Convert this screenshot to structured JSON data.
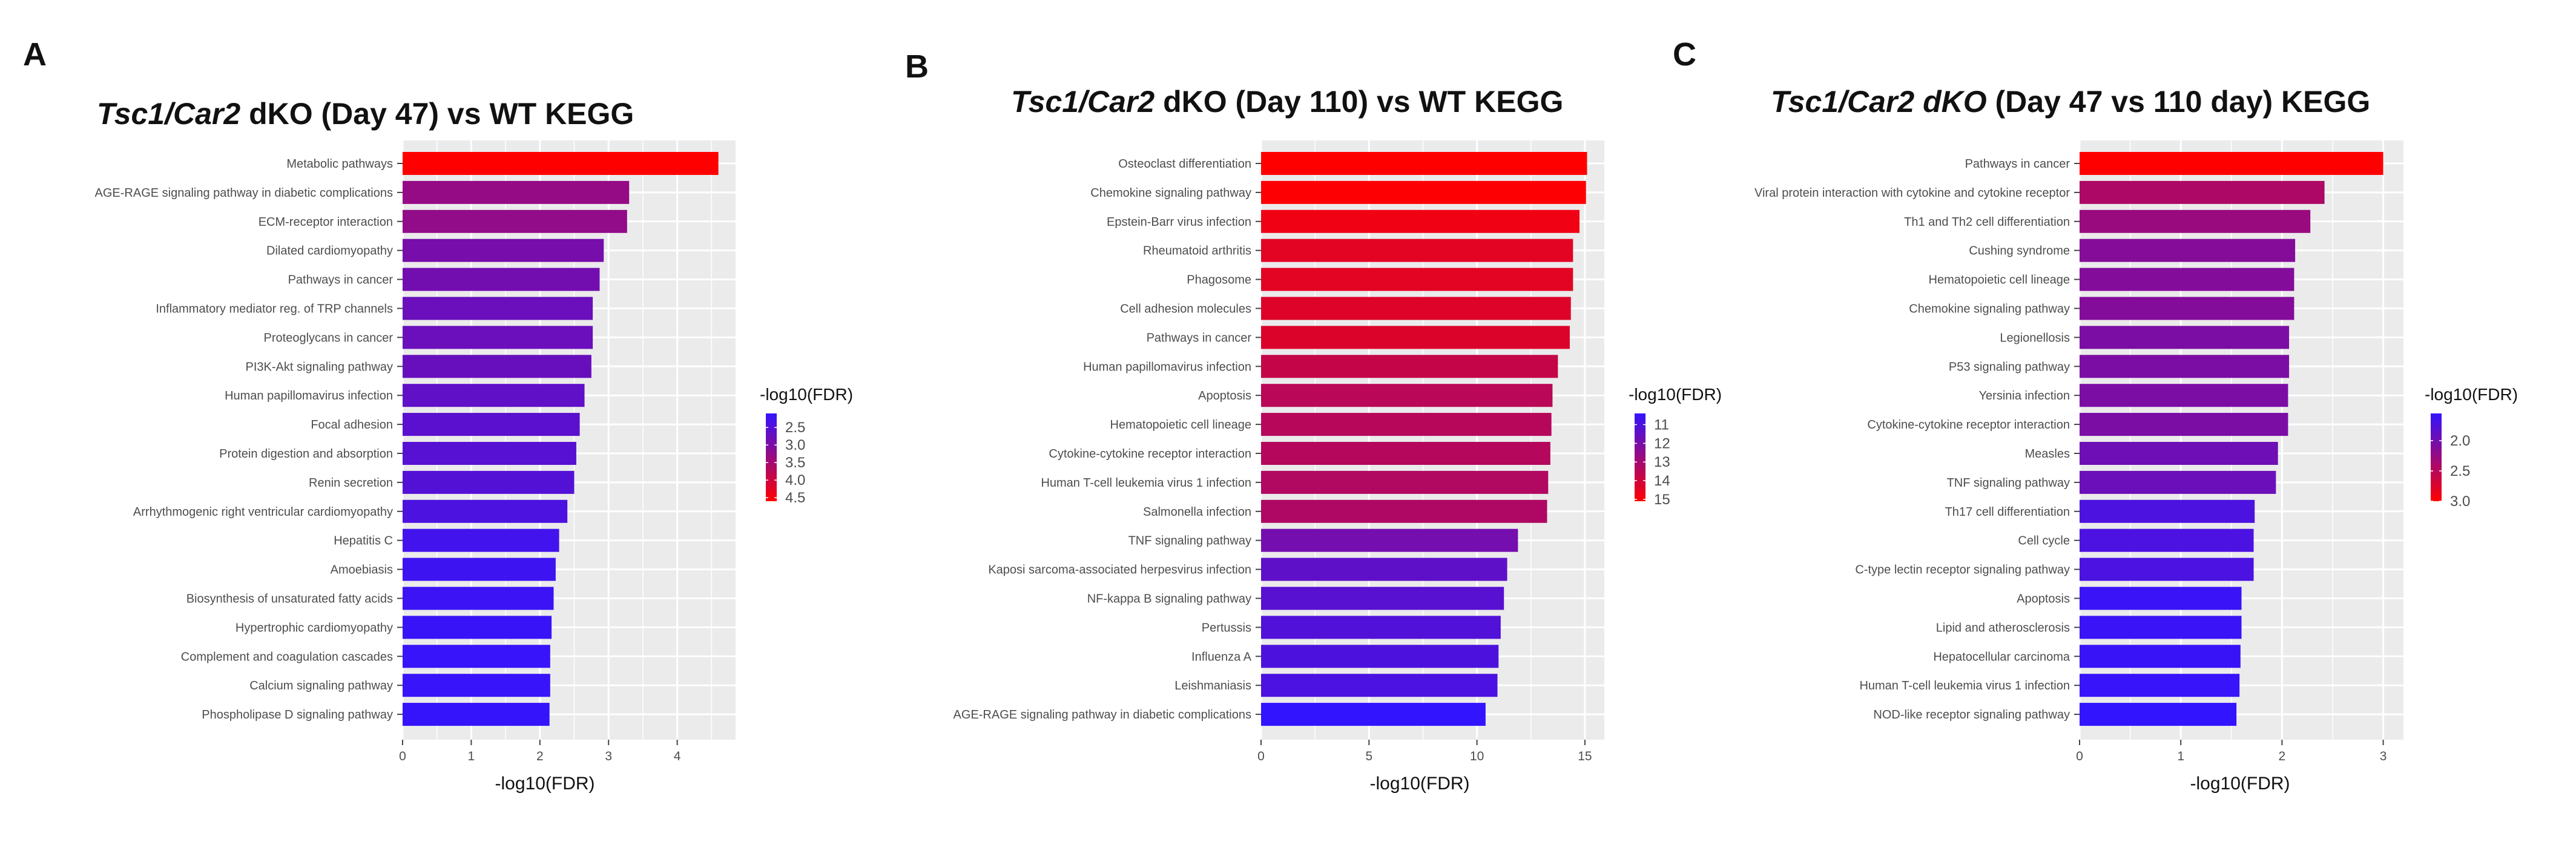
{
  "axis_title": "-log10(FDR)",
  "legend_title": "-log10(FDR)",
  "chart_data": [
    {
      "type": "bar",
      "panel_label": "A",
      "title_italic": "Tsc1/Car2",
      "title_rest": " dKO (Day 47) vs WT KEGG",
      "xlabel": "-log10(FDR)",
      "xlim": [
        0,
        4.85
      ],
      "xticks": [
        0,
        1,
        2,
        3,
        4
      ],
      "color_range": [
        2.1,
        4.6
      ],
      "legend_ticks": [
        2.5,
        3.0,
        3.5,
        4.0,
        4.5
      ],
      "legend_tick_labels": [
        "2.5",
        "3.0",
        "3.5",
        "4.0",
        "4.5"
      ],
      "categories": [
        "Metabolic pathways",
        "AGE-RAGE signaling pathway in diabetic complications",
        "ECM-receptor interaction",
        "Dilated cardiomyopathy",
        "Pathways in cancer",
        "Inflammatory mediator reg. of TRP channels",
        "Proteoglycans in cancer",
        "PI3K-Akt signaling pathway",
        "Human papillomavirus infection",
        "Focal adhesion",
        "Protein digestion and absorption",
        "Renin secretion",
        "Arrhythmogenic right ventricular cardiomyopathy",
        "Hepatitis C",
        "Amoebiasis",
        "Biosynthesis of unsaturated fatty acids",
        "Hypertrophic cardiomyopathy",
        "Complement and coagulation cascades",
        "Calcium signaling pathway",
        "Phospholipase D signaling pathway"
      ],
      "values": [
        4.6,
        3.3,
        3.27,
        2.93,
        2.87,
        2.77,
        2.77,
        2.75,
        2.65,
        2.58,
        2.53,
        2.5,
        2.4,
        2.28,
        2.23,
        2.2,
        2.17,
        2.15,
        2.15,
        2.14
      ]
    },
    {
      "type": "bar",
      "panel_label": "B",
      "title_italic": "Tsc1/Car2",
      "title_rest": " dKO (Day 110) vs WT KEGG",
      "xlabel": "-log10(FDR)",
      "xlim": [
        0,
        15.9
      ],
      "xticks": [
        0,
        5,
        10,
        15
      ],
      "color_range": [
        10.4,
        15.1
      ],
      "legend_ticks": [
        11,
        12,
        13,
        14,
        15
      ],
      "legend_tick_labels": [
        "11",
        "12",
        "13",
        "14",
        "15"
      ],
      "categories": [
        "Osteoclast differentiation",
        "Chemokine signaling pathway",
        "Epstein-Barr virus infection",
        "Rheumatoid arthritis",
        "Phagosome",
        "Cell adhesion molecules",
        "Pathways in cancer",
        "Human papillomavirus infection",
        "Apoptosis",
        "Hematopoietic cell lineage",
        "Cytokine-cytokine receptor interaction",
        "Human T-cell leukemia virus 1 infection",
        "Salmonella infection",
        "TNF signaling pathway",
        "Kaposi sarcoma-associated herpesvirus infection",
        "NF-kappa B signaling pathway",
        "Pertussis",
        "Influenza A",
        "Leishmaniasis",
        "AGE-RAGE signaling pathway in diabetic complications"
      ],
      "values": [
        15.1,
        15.05,
        14.75,
        14.45,
        14.45,
        14.35,
        14.3,
        13.75,
        13.5,
        13.45,
        13.4,
        13.3,
        13.25,
        11.9,
        11.4,
        11.25,
        11.1,
        11.0,
        10.95,
        10.4
      ]
    },
    {
      "type": "bar",
      "panel_label": "C",
      "title_italic": "Tsc1/Car2 dKO",
      "title_rest": " (Day 47 vs 110 day) KEGG",
      "xlabel": "-log10(FDR)",
      "xlim": [
        0,
        3.2
      ],
      "xticks": [
        0,
        1,
        2,
        3
      ],
      "color_range": [
        1.55,
        3.0
      ],
      "legend_ticks": [
        2.0,
        2.5,
        3.0
      ],
      "legend_tick_labels": [
        "2.0",
        "2.5",
        "3.0"
      ],
      "categories": [
        "Pathways in cancer",
        "Viral protein interaction with cytokine and cytokine receptor",
        "Th1 and Th2 cell differentiation",
        "Cushing syndrome",
        "Hematopoietic cell lineage",
        "Chemokine signaling pathway",
        "Legionellosis",
        "P53 signaling pathway",
        "Yersinia infection",
        "Cytokine-cytokine receptor interaction",
        "Measles",
        "TNF signaling pathway",
        "Th17 cell differentiation",
        "Cell cycle",
        "C-type lectin receptor signaling pathway",
        "Apoptosis",
        "Lipid and atherosclerosis",
        "Hepatocellular carcinoma",
        "Human T-cell leukemia virus 1 infection",
        "NOD-like receptor signaling pathway"
      ],
      "values": [
        3.0,
        2.42,
        2.28,
        2.13,
        2.12,
        2.12,
        2.07,
        2.07,
        2.06,
        2.06,
        1.96,
        1.94,
        1.73,
        1.72,
        1.72,
        1.6,
        1.6,
        1.59,
        1.58,
        1.55
      ]
    }
  ]
}
